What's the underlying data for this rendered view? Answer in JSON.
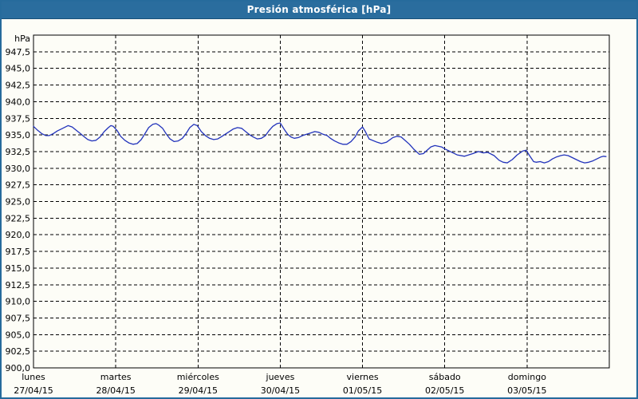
{
  "window": {
    "title": "Presión atmosférica [hPa]"
  },
  "colors": {
    "titlebar": "#2a6d9e",
    "window_border": "#266b9c",
    "background": "#fdfdf7",
    "plot_border": "#000000",
    "grid": "#000000",
    "line": "#2233bb",
    "text": "#000000"
  },
  "chart_data": {
    "type": "line",
    "title": "Presión atmosférica [hPa]",
    "unit_label": "hPa",
    "ylabel": "hPa",
    "ylim": [
      900,
      950
    ],
    "ytick_step": 2.5,
    "y_tick_labels": [
      "900,0",
      "902,5",
      "905,0",
      "907,5",
      "910,0",
      "912,5",
      "915,0",
      "917,5",
      "920,0",
      "922,5",
      "925,0",
      "927,5",
      "930,0",
      "932,5",
      "935,0",
      "937,5",
      "940,0",
      "942,5",
      "945,0",
      "947,5"
    ],
    "grid": "dashed",
    "legend": "none",
    "x_days": [
      {
        "name": "lunes",
        "date": "27/04/15"
      },
      {
        "name": "martes",
        "date": "28/04/15"
      },
      {
        "name": "miércoles",
        "date": "29/04/15"
      },
      {
        "name": "jueves",
        "date": "30/04/15"
      },
      {
        "name": "viernes",
        "date": "01/05/15"
      },
      {
        "name": "sábado",
        "date": "02/05/15"
      },
      {
        "name": "domingo",
        "date": "03/05/15"
      }
    ],
    "series": [
      {
        "name": "Presión atmosférica",
        "x_unit": "days_from_monday_00h",
        "points": [
          [
            0.0,
            936.3
          ],
          [
            0.05,
            935.7
          ],
          [
            0.1,
            935.2
          ],
          [
            0.15,
            934.9
          ],
          [
            0.19,
            934.9
          ],
          [
            0.24,
            935.2
          ],
          [
            0.29,
            935.6
          ],
          [
            0.34,
            935.9
          ],
          [
            0.42,
            936.4
          ],
          [
            0.47,
            936.2
          ],
          [
            0.52,
            935.7
          ],
          [
            0.57,
            935.2
          ],
          [
            0.62,
            934.7
          ],
          [
            0.66,
            934.3
          ],
          [
            0.71,
            934.1
          ],
          [
            0.76,
            934.2
          ],
          [
            0.81,
            934.7
          ],
          [
            0.86,
            935.5
          ],
          [
            0.91,
            936.1
          ],
          [
            0.94,
            936.4
          ],
          [
            0.97,
            936.3
          ],
          [
            1.02,
            935.6
          ],
          [
            1.06,
            934.8
          ],
          [
            1.11,
            934.2
          ],
          [
            1.16,
            933.8
          ],
          [
            1.21,
            933.6
          ],
          [
            1.26,
            933.7
          ],
          [
            1.31,
            934.3
          ],
          [
            1.36,
            935.3
          ],
          [
            1.4,
            936.1
          ],
          [
            1.45,
            936.6
          ],
          [
            1.49,
            936.7
          ],
          [
            1.52,
            936.5
          ],
          [
            1.57,
            936.0
          ],
          [
            1.61,
            935.2
          ],
          [
            1.66,
            934.4
          ],
          [
            1.71,
            934.0
          ],
          [
            1.76,
            934.1
          ],
          [
            1.81,
            934.5
          ],
          [
            1.86,
            935.3
          ],
          [
            1.9,
            936.1
          ],
          [
            1.95,
            936.6
          ],
          [
            1.99,
            936.4
          ],
          [
            2.04,
            935.5
          ],
          [
            2.09,
            934.9
          ],
          [
            2.14,
            934.5
          ],
          [
            2.19,
            934.3
          ],
          [
            2.24,
            934.4
          ],
          [
            2.28,
            934.7
          ],
          [
            2.33,
            935.1
          ],
          [
            2.38,
            935.5
          ],
          [
            2.43,
            935.9
          ],
          [
            2.48,
            936.1
          ],
          [
            2.53,
            936.0
          ],
          [
            2.57,
            935.6
          ],
          [
            2.62,
            935.1
          ],
          [
            2.67,
            934.7
          ],
          [
            2.72,
            934.4
          ],
          [
            2.77,
            934.5
          ],
          [
            2.82,
            934.9
          ],
          [
            2.86,
            935.6
          ],
          [
            2.91,
            936.3
          ],
          [
            2.96,
            936.7
          ],
          [
            3.0,
            936.8
          ],
          [
            3.05,
            935.8
          ],
          [
            3.09,
            935.1
          ],
          [
            3.13,
            934.7
          ],
          [
            3.17,
            934.5
          ],
          [
            3.22,
            934.6
          ],
          [
            3.27,
            934.9
          ],
          [
            3.32,
            935.1
          ],
          [
            3.37,
            935.3
          ],
          [
            3.42,
            935.5
          ],
          [
            3.47,
            935.4
          ],
          [
            3.52,
            935.1
          ],
          [
            3.57,
            934.9
          ],
          [
            3.61,
            934.5
          ],
          [
            3.66,
            934.1
          ],
          [
            3.71,
            933.8
          ],
          [
            3.76,
            933.6
          ],
          [
            3.81,
            933.6
          ],
          [
            3.86,
            934.0
          ],
          [
            3.91,
            934.7
          ],
          [
            3.95,
            935.6
          ],
          [
            4.0,
            936.2
          ],
          [
            4.03,
            935.6
          ],
          [
            4.08,
            934.4
          ],
          [
            4.18,
            933.9
          ],
          [
            4.23,
            933.7
          ],
          [
            4.29,
            933.9
          ],
          [
            4.37,
            934.6
          ],
          [
            4.42,
            934.8
          ],
          [
            4.47,
            934.7
          ],
          [
            4.57,
            933.6
          ],
          [
            4.62,
            932.9
          ],
          [
            4.69,
            932.1
          ],
          [
            4.74,
            932.2
          ],
          [
            4.83,
            933.2
          ],
          [
            4.88,
            933.4
          ],
          [
            4.96,
            933.2
          ],
          [
            5.0,
            932.9
          ],
          [
            5.05,
            932.6
          ],
          [
            5.15,
            932.0
          ],
          [
            5.24,
            931.8
          ],
          [
            5.34,
            932.2
          ],
          [
            5.41,
            932.5
          ],
          [
            5.47,
            932.3
          ],
          [
            5.52,
            932.4
          ],
          [
            5.6,
            931.9
          ],
          [
            5.66,
            931.2
          ],
          [
            5.71,
            930.9
          ],
          [
            5.76,
            930.8
          ],
          [
            5.82,
            931.3
          ],
          [
            5.88,
            932.0
          ],
          [
            5.95,
            932.6
          ],
          [
            5.99,
            932.7
          ],
          [
            6.03,
            931.9
          ],
          [
            6.08,
            931.0
          ],
          [
            6.11,
            930.9
          ],
          [
            6.16,
            931.0
          ],
          [
            6.21,
            930.8
          ],
          [
            6.26,
            931.0
          ],
          [
            6.31,
            931.4
          ],
          [
            6.36,
            931.7
          ],
          [
            6.41,
            931.9
          ],
          [
            6.45,
            932.0
          ],
          [
            6.5,
            931.9
          ],
          [
            6.55,
            931.6
          ],
          [
            6.6,
            931.3
          ],
          [
            6.65,
            931.0
          ],
          [
            6.7,
            930.8
          ],
          [
            6.75,
            930.9
          ],
          [
            6.8,
            931.1
          ],
          [
            6.85,
            931.4
          ],
          [
            6.9,
            931.7
          ],
          [
            6.93,
            931.8
          ],
          [
            6.96,
            931.75
          ]
        ]
      }
    ]
  }
}
